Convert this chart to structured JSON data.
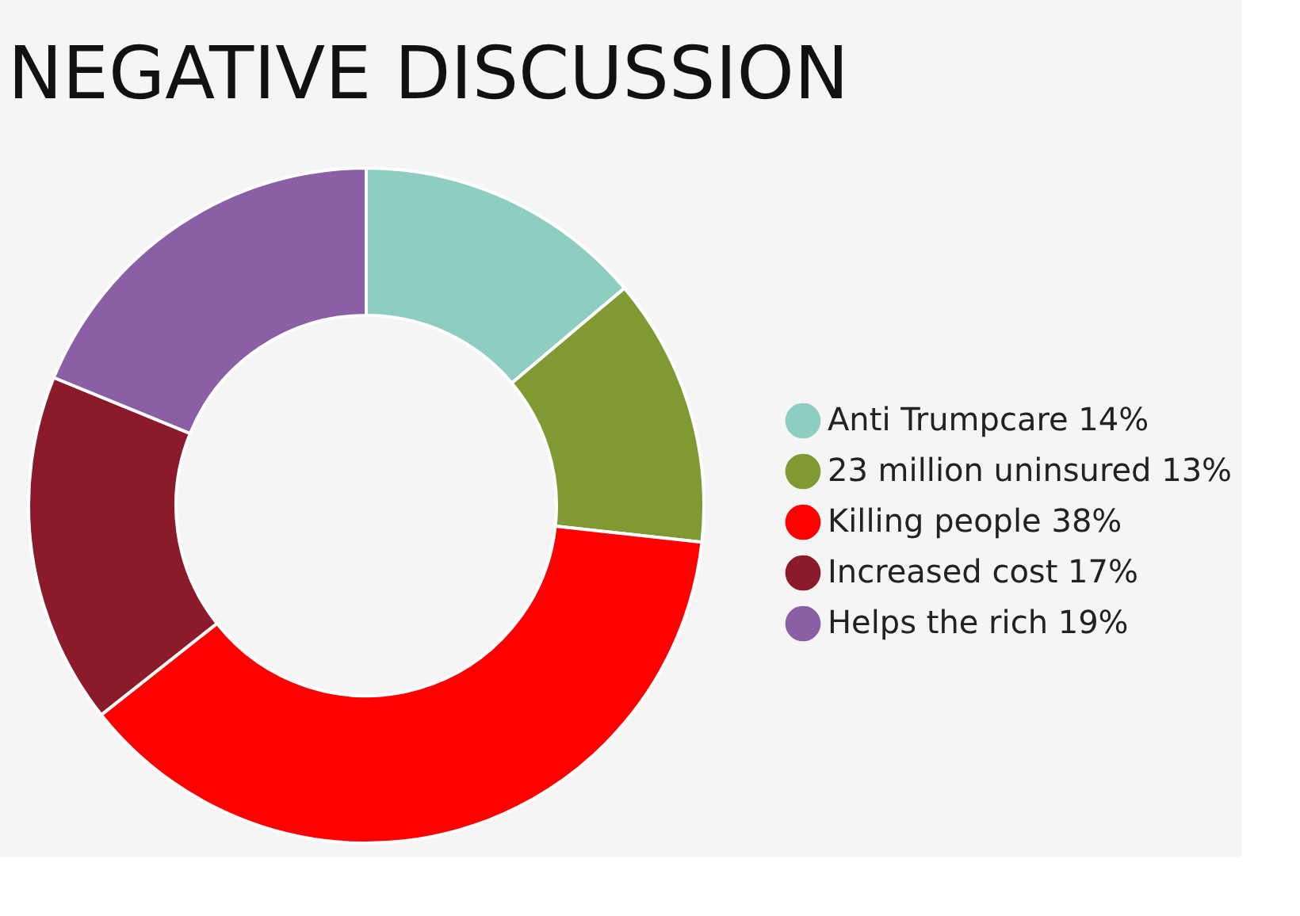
{
  "chart_data": {
    "type": "donut",
    "title": "NEGATIVE DISCUSSION",
    "categories": [
      "Anti Trumpcare 14%",
      "23 million uninsured 13%",
      "Killing people 38%",
      "Increased cost 17%",
      "Helps the rich 19%"
    ],
    "values": [
      14,
      13,
      38,
      17,
      19
    ],
    "colors": [
      "#8ecdc1",
      "#7f9a33",
      "#ff0000",
      "#8b1a2a",
      "#8b5fa6"
    ],
    "legend": "right"
  }
}
